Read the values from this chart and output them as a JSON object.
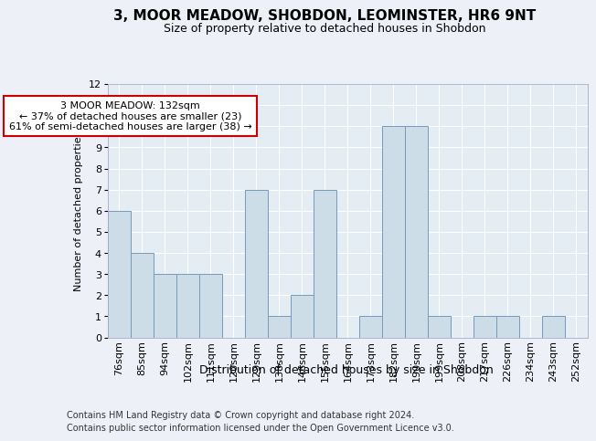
{
  "title_line1": "3, MOOR MEADOW, SHOBDON, LEOMINSTER, HR6 9NT",
  "title_line2": "Size of property relative to detached houses in Shobdon",
  "xlabel": "Distribution of detached houses by size in Shobdon",
  "ylabel": "Number of detached properties",
  "categories": [
    "76sqm",
    "85sqm",
    "94sqm",
    "102sqm",
    "111sqm",
    "120sqm",
    "129sqm",
    "138sqm",
    "146sqm",
    "155sqm",
    "164sqm",
    "173sqm",
    "182sqm",
    "190sqm",
    "199sqm",
    "208sqm",
    "217sqm",
    "226sqm",
    "234sqm",
    "243sqm",
    "252sqm"
  ],
  "values": [
    6,
    4,
    3,
    3,
    3,
    0,
    7,
    1,
    2,
    7,
    0,
    1,
    10,
    10,
    1,
    0,
    1,
    1,
    0,
    1,
    0
  ],
  "bar_color": "#ccdde8",
  "bar_edge_color": "#7799bb",
  "annotation_text": "3 MOOR MEADOW: 132sqm\n← 37% of detached houses are smaller (23)\n61% of semi-detached houses are larger (38) →",
  "annotation_box_color": "#ffffff",
  "annotation_border_color": "#cc0000",
  "ylim": [
    0,
    12
  ],
  "yticks": [
    0,
    1,
    2,
    3,
    4,
    5,
    6,
    7,
    8,
    9,
    10,
    11,
    12
  ],
  "footer_line1": "Contains HM Land Registry data © Crown copyright and database right 2024.",
  "footer_line2": "Contains public sector information licensed under the Open Government Licence v3.0.",
  "background_color": "#edf1f7",
  "plot_bg_color": "#e4ecf4",
  "title_fontsize": 11,
  "subtitle_fontsize": 9,
  "ylabel_fontsize": 8,
  "tick_fontsize": 8,
  "xlabel_fontsize": 9,
  "footer_fontsize": 7,
  "annot_fontsize": 8
}
